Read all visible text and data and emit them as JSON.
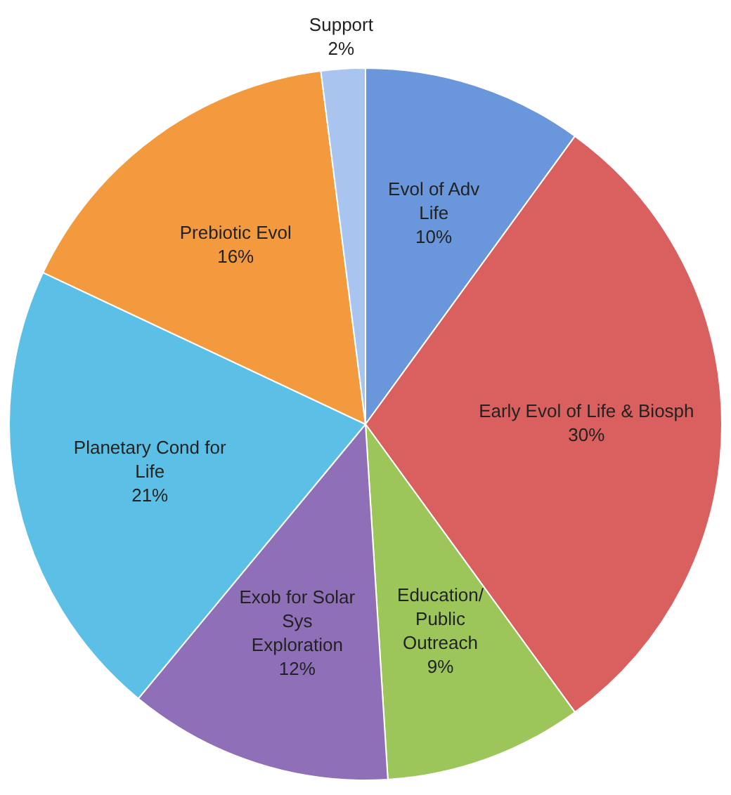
{
  "chart_data": {
    "type": "pie",
    "categories": [
      "Evol of Adv Life",
      "Early Evol of Life & Biosph",
      "Education/ Public Outreach",
      "Exob for Solar Sys Exploration",
      "Planetary Cond for Life",
      "Prebiotic Evol",
      "Support"
    ],
    "values": [
      10,
      30,
      9,
      12,
      21,
      16,
      2
    ],
    "value_labels": [
      "10%",
      "30%",
      "9%",
      "12%",
      "21%",
      "16%",
      "2%"
    ],
    "colors": [
      "#6a96dc",
      "#d9605e",
      "#9cc65a",
      "#8f70b8",
      "#5cc0e6",
      "#f39a3f",
      "#a9c4ee"
    ],
    "legend": false
  }
}
